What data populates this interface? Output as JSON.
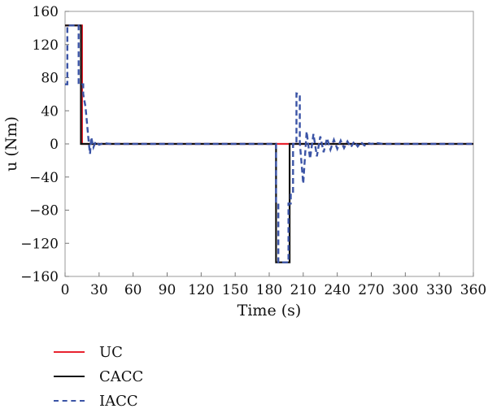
{
  "chart_data": {
    "type": "line",
    "xlabel": "Time (s)",
    "ylabel": "u (Nm)",
    "xlim": [
      0,
      360
    ],
    "ylim": [
      -160,
      160
    ],
    "xticks": [
      0,
      30,
      60,
      90,
      120,
      150,
      180,
      210,
      240,
      270,
      300,
      330,
      360
    ],
    "yticks": [
      160,
      120,
      80,
      40,
      0,
      -40,
      -80,
      -120,
      -160
    ],
    "grid": false,
    "legend_position": "below",
    "series": [
      {
        "name": "UC",
        "color": "#e8232f",
        "style": "solid",
        "x": [
          0,
          15,
          15,
          360
        ],
        "y": [
          143,
          143,
          0,
          0
        ]
      },
      {
        "name": "CACC",
        "color": "#111111",
        "style": "solid",
        "x": [
          0,
          14,
          14,
          186,
          186,
          198,
          198,
          360
        ],
        "y": [
          143,
          143,
          0,
          0,
          -143,
          -143,
          0,
          0
        ]
      },
      {
        "name": "IACC",
        "color": "#3b54a6",
        "style": "dashed",
        "x": [
          0,
          2,
          2,
          12,
          12,
          16,
          16,
          18,
          19,
          20,
          21,
          22,
          23,
          25,
          27,
          30,
          34,
          40,
          186,
          186,
          188,
          188,
          197,
          197,
          199,
          199,
          201,
          201,
          204,
          204,
          207,
          207,
          210,
          213,
          216,
          219,
          222,
          225,
          228,
          231,
          234,
          237,
          240,
          243,
          246,
          249,
          252,
          255,
          258,
          261,
          264,
          267,
          270,
          275,
          280,
          300,
          360
        ],
        "y": [
          72,
          72,
          143,
          143,
          72,
          72,
          60,
          45,
          30,
          15,
          0,
          -12,
          8,
          -4,
          3,
          -1,
          1,
          0,
          0,
          -72,
          -72,
          -143,
          -143,
          -72,
          -72,
          -60,
          -60,
          0,
          0,
          61,
          60,
          2,
          -48,
          15,
          -18,
          12,
          -15,
          9,
          -10,
          7,
          -7,
          5,
          -6,
          4,
          -5,
          3,
          -4,
          3,
          -3,
          2,
          -2,
          1,
          0,
          1,
          0,
          0,
          0
        ]
      }
    ]
  }
}
